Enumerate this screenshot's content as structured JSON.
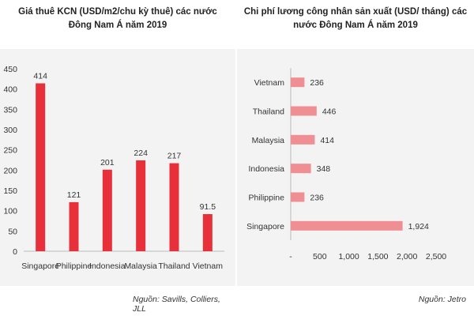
{
  "chart_data": [
    {
      "type": "bar",
      "orientation": "vertical",
      "title": "Giá thuê KCN (USD/m2/chu kỳ thuê) các nước Đông Nam Á năm 2019",
      "categories": [
        "Singapore",
        "Philippine",
        "Indonesia",
        "Malaysia",
        "Thailand",
        "Vietnam"
      ],
      "values": [
        414,
        121,
        201,
        224,
        217,
        91.5
      ],
      "value_labels": [
        "414",
        "121",
        "201",
        "224",
        "217",
        "91.5"
      ],
      "ylim": [
        0,
        450
      ],
      "y_ticks": [
        "0",
        "50",
        "100",
        "150",
        "200",
        "250",
        "300",
        "350",
        "400",
        "450"
      ],
      "grid": false,
      "bar_color": "#e8303a",
      "source": "Nguồn: Savills, Colliers, JLL"
    },
    {
      "type": "bar",
      "orientation": "horizontal",
      "title": "Chi phí lương công nhân sản xuất (USD/ tháng) các nước Đông Nam Á năm 2019",
      "categories": [
        "Vietnam",
        "Thailand",
        "Malaysia",
        "Indonesia",
        "Philippine",
        "Singapore"
      ],
      "values": [
        236,
        446,
        414,
        348,
        236,
        1924
      ],
      "value_labels": [
        "236",
        "446",
        "414",
        "348",
        "236",
        "1,924"
      ],
      "xlim": [
        0,
        2500
      ],
      "x_ticks": [
        "-",
        "500",
        "1,000",
        "1,500",
        "2,000",
        "2,500"
      ],
      "grid": false,
      "bar_color": "#ef8f93",
      "source": "Nguồn: Jetro"
    }
  ]
}
